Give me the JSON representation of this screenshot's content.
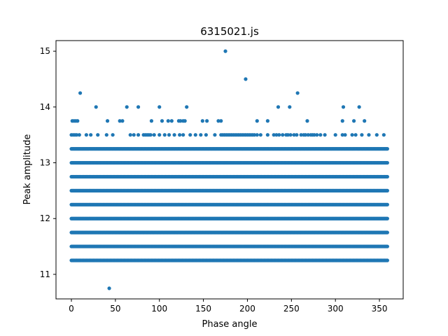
{
  "chart_data": {
    "type": "scatter",
    "title": "6315021.js",
    "xlabel": "Phase angle",
    "ylabel": "Peak amplitude",
    "xlim": [
      -17.5,
      377
    ],
    "ylim": [
      10.56,
      15.19
    ],
    "xticks": [
      0,
      50,
      100,
      150,
      200,
      250,
      300,
      350
    ],
    "yticks": [
      11,
      12,
      13,
      14,
      15
    ],
    "marker_color": "#1f77b4",
    "grid": false,
    "dense_levels": [
      {
        "y": 11.25,
        "x_range": [
          0,
          359
        ]
      },
      {
        "y": 11.5,
        "x_range": [
          0,
          359
        ]
      },
      {
        "y": 11.75,
        "x_range": [
          0,
          359
        ]
      },
      {
        "y": 12.0,
        "x_range": [
          0,
          359
        ]
      },
      {
        "y": 12.25,
        "x_range": [
          0,
          359
        ]
      },
      {
        "y": 12.5,
        "x_range": [
          0,
          359
        ]
      },
      {
        "y": 12.75,
        "x_range": [
          0,
          359
        ]
      },
      {
        "y": 13.0,
        "x_range": [
          0,
          359
        ]
      },
      {
        "y": 13.25,
        "x_range": [
          0,
          359
        ]
      }
    ],
    "sparse_points": [
      {
        "x": 0,
        "y": 13.5
      },
      {
        "x": 2,
        "y": 13.5
      },
      {
        "x": 4,
        "y": 13.5
      },
      {
        "x": 6,
        "y": 13.5
      },
      {
        "x": 9,
        "y": 13.5
      },
      {
        "x": 17,
        "y": 13.5
      },
      {
        "x": 22,
        "y": 13.5
      },
      {
        "x": 30,
        "y": 13.5
      },
      {
        "x": 40,
        "y": 13.5
      },
      {
        "x": 47,
        "y": 13.5
      },
      {
        "x": 67,
        "y": 13.5
      },
      {
        "x": 71,
        "y": 13.5
      },
      {
        "x": 76,
        "y": 13.5
      },
      {
        "x": 82,
        "y": 13.5
      },
      {
        "x": 84,
        "y": 13.5
      },
      {
        "x": 86,
        "y": 13.5
      },
      {
        "x": 88,
        "y": 13.5
      },
      {
        "x": 90,
        "y": 13.5
      },
      {
        "x": 94,
        "y": 13.5
      },
      {
        "x": 100,
        "y": 13.5
      },
      {
        "x": 106,
        "y": 13.5
      },
      {
        "x": 111,
        "y": 13.5
      },
      {
        "x": 117,
        "y": 13.5
      },
      {
        "x": 123,
        "y": 13.5
      },
      {
        "x": 127,
        "y": 13.5
      },
      {
        "x": 135,
        "y": 13.5
      },
      {
        "x": 141,
        "y": 13.5
      },
      {
        "x": 147,
        "y": 13.5
      },
      {
        "x": 153,
        "y": 13.5
      },
      {
        "x": 163,
        "y": 13.5
      },
      {
        "x": 170,
        "y": 13.5
      },
      {
        "x": 172,
        "y": 13.5
      },
      {
        "x": 174,
        "y": 13.5
      },
      {
        "x": 176,
        "y": 13.5
      },
      {
        "x": 178,
        "y": 13.5
      },
      {
        "x": 180,
        "y": 13.5
      },
      {
        "x": 182,
        "y": 13.5
      },
      {
        "x": 184,
        "y": 13.5
      },
      {
        "x": 186,
        "y": 13.5
      },
      {
        "x": 188,
        "y": 13.5
      },
      {
        "x": 190,
        "y": 13.5
      },
      {
        "x": 192,
        "y": 13.5
      },
      {
        "x": 194,
        "y": 13.5
      },
      {
        "x": 196,
        "y": 13.5
      },
      {
        "x": 198,
        "y": 13.5
      },
      {
        "x": 200,
        "y": 13.5
      },
      {
        "x": 202,
        "y": 13.5
      },
      {
        "x": 204,
        "y": 13.5
      },
      {
        "x": 206,
        "y": 13.5
      },
      {
        "x": 208,
        "y": 13.5
      },
      {
        "x": 211,
        "y": 13.5
      },
      {
        "x": 215,
        "y": 13.5
      },
      {
        "x": 223,
        "y": 13.5
      },
      {
        "x": 230,
        "y": 13.5
      },
      {
        "x": 233,
        "y": 13.5
      },
      {
        "x": 236,
        "y": 13.5
      },
      {
        "x": 240,
        "y": 13.5
      },
      {
        "x": 244,
        "y": 13.5
      },
      {
        "x": 246,
        "y": 13.5
      },
      {
        "x": 249,
        "y": 13.5
      },
      {
        "x": 253,
        "y": 13.5
      },
      {
        "x": 256,
        "y": 13.5
      },
      {
        "x": 261,
        "y": 13.5
      },
      {
        "x": 264,
        "y": 13.5
      },
      {
        "x": 266,
        "y": 13.5
      },
      {
        "x": 269,
        "y": 13.5
      },
      {
        "x": 272,
        "y": 13.5
      },
      {
        "x": 274,
        "y": 13.5
      },
      {
        "x": 276,
        "y": 13.5
      },
      {
        "x": 279,
        "y": 13.5
      },
      {
        "x": 283,
        "y": 13.5
      },
      {
        "x": 288,
        "y": 13.5
      },
      {
        "x": 300,
        "y": 13.5
      },
      {
        "x": 308,
        "y": 13.5
      },
      {
        "x": 311,
        "y": 13.5
      },
      {
        "x": 319,
        "y": 13.5
      },
      {
        "x": 323,
        "y": 13.5
      },
      {
        "x": 330,
        "y": 13.5
      },
      {
        "x": 338,
        "y": 13.5
      },
      {
        "x": 347,
        "y": 13.5
      },
      {
        "x": 355,
        "y": 13.5
      },
      {
        "x": 1,
        "y": 13.75
      },
      {
        "x": 3,
        "y": 13.75
      },
      {
        "x": 5,
        "y": 13.75
      },
      {
        "x": 7,
        "y": 13.75
      },
      {
        "x": 41,
        "y": 13.75
      },
      {
        "x": 55,
        "y": 13.75
      },
      {
        "x": 58,
        "y": 13.75
      },
      {
        "x": 91,
        "y": 13.75
      },
      {
        "x": 103,
        "y": 13.75
      },
      {
        "x": 110,
        "y": 13.75
      },
      {
        "x": 114,
        "y": 13.75
      },
      {
        "x": 122,
        "y": 13.75
      },
      {
        "x": 124,
        "y": 13.75
      },
      {
        "x": 127,
        "y": 13.75
      },
      {
        "x": 129,
        "y": 13.75
      },
      {
        "x": 149,
        "y": 13.75
      },
      {
        "x": 154,
        "y": 13.75
      },
      {
        "x": 167,
        "y": 13.75
      },
      {
        "x": 170,
        "y": 13.75
      },
      {
        "x": 211,
        "y": 13.75
      },
      {
        "x": 223,
        "y": 13.75
      },
      {
        "x": 268,
        "y": 13.75
      },
      {
        "x": 308,
        "y": 13.75
      },
      {
        "x": 321,
        "y": 13.75
      },
      {
        "x": 333,
        "y": 13.75
      },
      {
        "x": 28,
        "y": 14.0
      },
      {
        "x": 63,
        "y": 14.0
      },
      {
        "x": 76,
        "y": 14.0
      },
      {
        "x": 100,
        "y": 14.0
      },
      {
        "x": 131,
        "y": 14.0
      },
      {
        "x": 235,
        "y": 14.0
      },
      {
        "x": 248,
        "y": 14.0
      },
      {
        "x": 309,
        "y": 14.0
      },
      {
        "x": 327,
        "y": 14.0
      },
      {
        "x": 10,
        "y": 14.25
      },
      {
        "x": 257,
        "y": 14.25
      },
      {
        "x": 198,
        "y": 14.5
      },
      {
        "x": 175,
        "y": 15.0
      },
      {
        "x": 43,
        "y": 10.75
      }
    ]
  }
}
